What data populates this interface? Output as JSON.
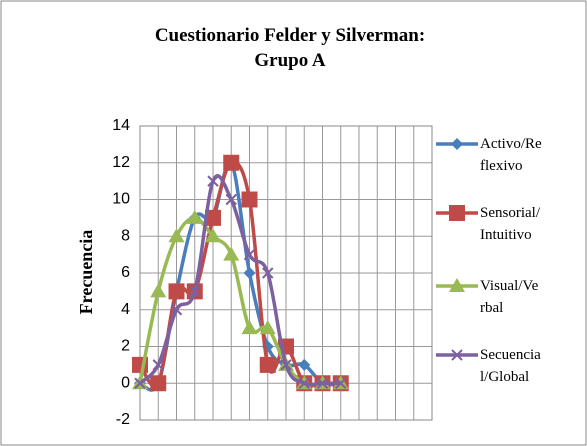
{
  "chart_data": {
    "type": "line",
    "title": "Cuestionario Felder y Silverman: Grupo A",
    "y_label": "Frecuencia",
    "categories": [
      null,
      null,
      null,
      null,
      null,
      null,
      null,
      null,
      null,
      null,
      null,
      null,
      null,
      null,
      null,
      null
    ],
    "series": [
      {
        "name": "Activo/Reflexivo",
        "color": "#4a7ebb",
        "marker": "diamond",
        "values": [
          0,
          0,
          5,
          9,
          9,
          12,
          6,
          2,
          1,
          1,
          0,
          0,
          null,
          null,
          null,
          null
        ]
      },
      {
        "name": "Sensorial/Intuitivo",
        "color": "#be4b48",
        "marker": "square",
        "values": [
          1,
          0,
          5,
          5,
          9,
          12,
          10,
          1,
          2,
          0,
          0,
          0,
          null,
          null,
          null,
          null
        ]
      },
      {
        "name": "Visual/Verbal",
        "color": "#98b954",
        "marker": "triangle",
        "values": [
          0,
          5,
          8,
          9,
          8,
          7,
          3,
          3,
          1,
          0,
          0,
          0,
          null,
          null,
          null,
          null
        ]
      },
      {
        "name": "Secuencial/Global",
        "color": "#7d60a0",
        "marker": "x",
        "values": [
          0,
          1,
          4,
          5,
          11,
          10,
          7,
          6,
          1,
          0,
          0,
          0,
          null,
          null,
          null,
          null
        ]
      }
    ],
    "ylim": [
      -2,
      14
    ],
    "yticks": [
      -2,
      0,
      2,
      4,
      6,
      8,
      10,
      12,
      14
    ],
    "grid": true,
    "legend": "right"
  }
}
